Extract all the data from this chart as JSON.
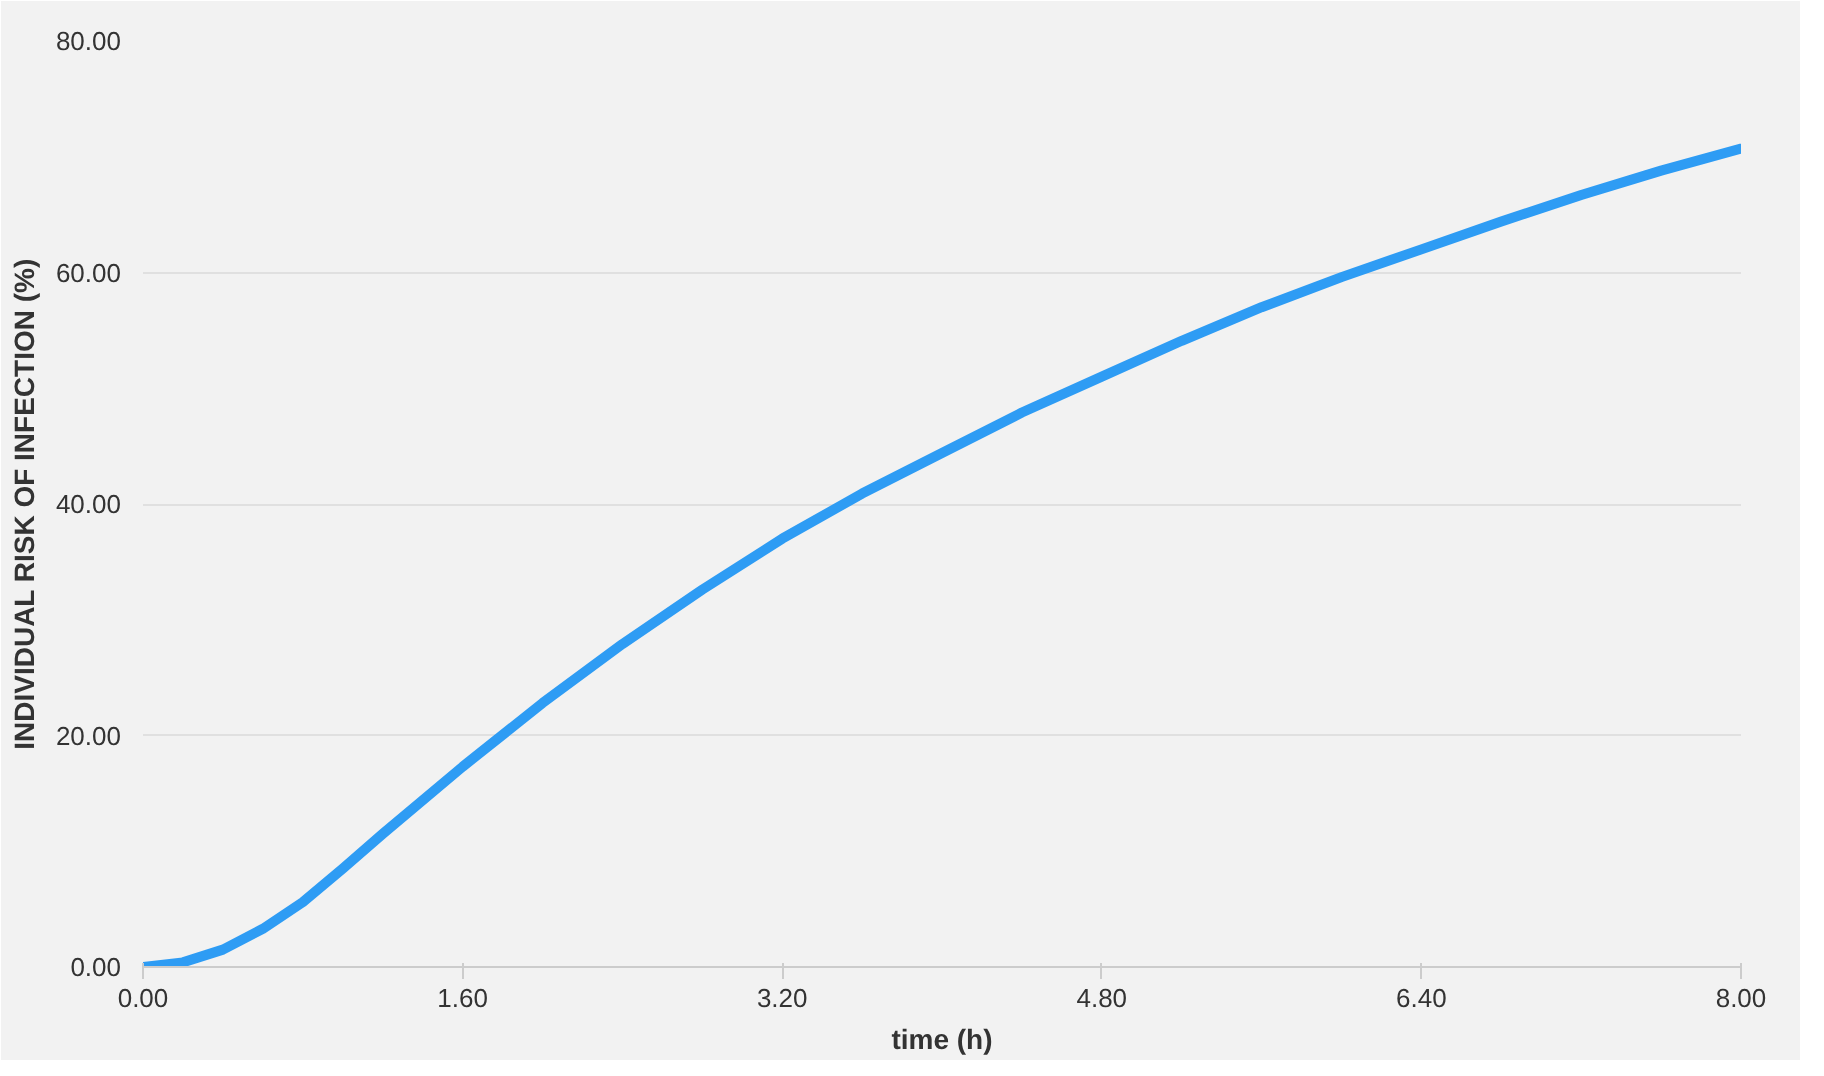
{
  "chart_data": {
    "type": "line",
    "xlabel": "time (h)",
    "ylabel": "INDIVIDUAL RISK OF INFECTION (%)",
    "x": [
      0,
      0.2,
      0.4,
      0.6,
      0.8,
      1.0,
      1.2,
      1.6,
      2.0,
      2.4,
      2.8,
      3.2,
      3.6,
      4.0,
      4.4,
      4.8,
      5.2,
      5.6,
      6.0,
      6.4,
      6.8,
      7.2,
      7.6,
      8.0
    ],
    "series": [
      {
        "color": "#2e9cf4",
        "values": [
          0,
          0.4,
          1.5,
          3.3,
          5.6,
          8.5,
          11.5,
          17.3,
          22.8,
          27.9,
          32.6,
          37.0,
          40.9,
          44.4,
          47.9,
          51.0,
          54.1,
          57.0,
          59.6,
          62.0,
          64.4,
          66.7,
          68.8,
          70.7
        ]
      }
    ],
    "xlim": [
      0,
      8
    ],
    "ylim": [
      0,
      80
    ],
    "xticks": [
      {
        "value": 0,
        "label": "0.00"
      },
      {
        "value": 1.6,
        "label": "1.60"
      },
      {
        "value": 3.2,
        "label": "3.20"
      },
      {
        "value": 4.8,
        "label": "4.80"
      },
      {
        "value": 6.4,
        "label": "6.40"
      },
      {
        "value": 8,
        "label": "8.00"
      }
    ],
    "yticks": [
      {
        "value": 0,
        "label": "0.00"
      },
      {
        "value": 20,
        "label": "20.00"
      },
      {
        "value": 40,
        "label": "40.00"
      },
      {
        "value": 60,
        "label": "60.00"
      },
      {
        "value": 80,
        "label": "80.00"
      }
    ],
    "grid": "y",
    "marker": "none",
    "line_style": "solid"
  }
}
